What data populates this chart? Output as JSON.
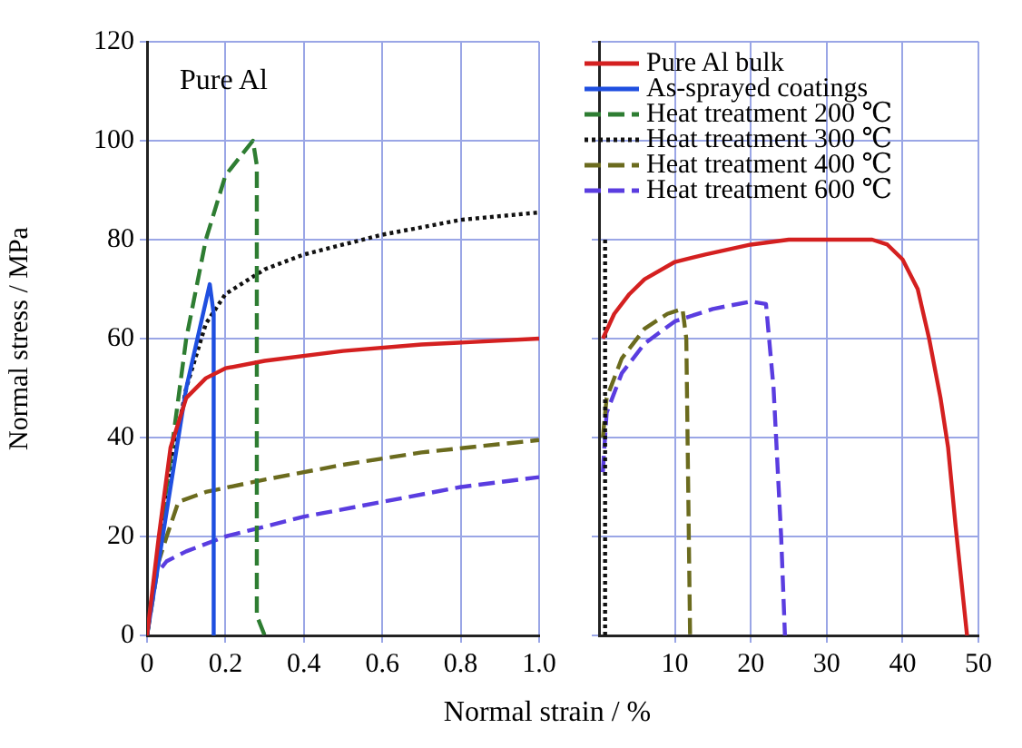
{
  "chart_data": [
    {
      "type": "line",
      "annotations": [
        "Pure Al"
      ],
      "xlabel": "Normal strain / %",
      "ylabel": "Normal stress / MPa",
      "xlim": [
        0,
        1.0
      ],
      "xticks": [
        0,
        0.2,
        0.4,
        0.6,
        0.8,
        {
          "value": 1.0,
          "label": "1.0"
        }
      ],
      "ylim": [
        0,
        120
      ],
      "yticks": [
        0,
        20,
        40,
        60,
        80,
        100,
        120
      ],
      "grid": true,
      "series": [
        {
          "color": "#d42020",
          "line_style": "solid",
          "x": [
            0,
            0.03,
            0.06,
            0.1,
            0.15,
            0.2,
            0.3,
            0.5,
            0.7,
            1.0
          ],
          "values": [
            0,
            20,
            38,
            48,
            52,
            54,
            55.5,
            57.5,
            58.8,
            60
          ]
        },
        {
          "color": "#1f4fe0",
          "line_style": "solid",
          "x": [
            0,
            0.05,
            0.1,
            0.16,
            0.17,
            0.17
          ],
          "values": [
            0,
            25,
            50,
            71,
            65,
            0
          ]
        },
        {
          "color": "#2e7d32",
          "line_style": "dashed",
          "x": [
            0,
            0.05,
            0.1,
            0.15,
            0.2,
            0.27,
            0.28,
            0.28,
            0.3
          ],
          "values": [
            0,
            30,
            60,
            80,
            93,
            100,
            95,
            4,
            0
          ]
        },
        {
          "color": "#111111",
          "line_style": "dotted",
          "x": [
            0,
            0.05,
            0.1,
            0.15,
            0.2,
            0.3,
            0.4,
            0.6,
            0.8,
            1.0
          ],
          "values": [
            0,
            30,
            50,
            63,
            69,
            74,
            77,
            81,
            84,
            85.5
          ]
        },
        {
          "color": "#6b6b1e",
          "line_style": "dashed",
          "x": [
            0,
            0.03,
            0.05,
            0.08,
            0.15,
            0.3,
            0.5,
            0.7,
            1.0
          ],
          "values": [
            0,
            15,
            20,
            27,
            29,
            31.5,
            34.5,
            37,
            39.5
          ]
        },
        {
          "color": "#5a3de0",
          "line_style": "dashed",
          "x": [
            0,
            0.02,
            0.05,
            0.1,
            0.2,
            0.4,
            0.6,
            0.8,
            1.0
          ],
          "values": [
            0,
            12,
            15,
            17,
            20,
            24,
            27,
            30,
            32
          ]
        }
      ]
    },
    {
      "type": "line",
      "xlim": [
        0,
        50
      ],
      "xticks": [
        10,
        20,
        30,
        40,
        50
      ],
      "ylim": [
        0,
        120
      ],
      "yticks": [
        0,
        20,
        40,
        60,
        80,
        100,
        120
      ],
      "grid": true,
      "tick_labels": "x",
      "legend": "top",
      "series": [
        {
          "name": "Pure Al bulk",
          "color": "#d42020",
          "line_style": "solid",
          "x": [
            0.5,
            2,
            4,
            6,
            10,
            14,
            20,
            25,
            36,
            38,
            40,
            42,
            43.5,
            45,
            46,
            47,
            48.5
          ],
          "values": [
            60,
            65,
            69,
            72,
            75.5,
            77,
            79,
            80,
            80,
            79,
            76,
            70,
            60,
            48,
            38,
            22,
            0
          ]
        },
        {
          "name": "As-sprayed coatings",
          "color": "#1f4fe0",
          "line_style": "solid"
        },
        {
          "name": "Heat treatment 200 ℃",
          "color": "#2e7d32",
          "line_style": "dashed"
        },
        {
          "name": "Heat treatment 300 ℃",
          "color": "#111111",
          "line_style": "dotted",
          "x": [
            0.8,
            0.8
          ],
          "values": [
            80,
            0
          ]
        },
        {
          "name": "Heat treatment 400 ℃",
          "color": "#6b6b1e",
          "line_style": "dashed",
          "x": [
            0.5,
            1,
            3,
            6,
            9,
            11,
            11.5,
            12
          ],
          "values": [
            40,
            48,
            56,
            62,
            65,
            66,
            60,
            0
          ]
        },
        {
          "name": "Heat treatment 600 ℃",
          "color": "#5a3de0",
          "line_style": "dashed",
          "x": [
            0.5,
            1,
            3,
            6,
            10,
            15,
            20,
            22,
            23,
            24,
            24.5
          ],
          "values": [
            33,
            45,
            53,
            59,
            63.5,
            66,
            67.5,
            67,
            50,
            20,
            0
          ]
        }
      ]
    }
  ]
}
